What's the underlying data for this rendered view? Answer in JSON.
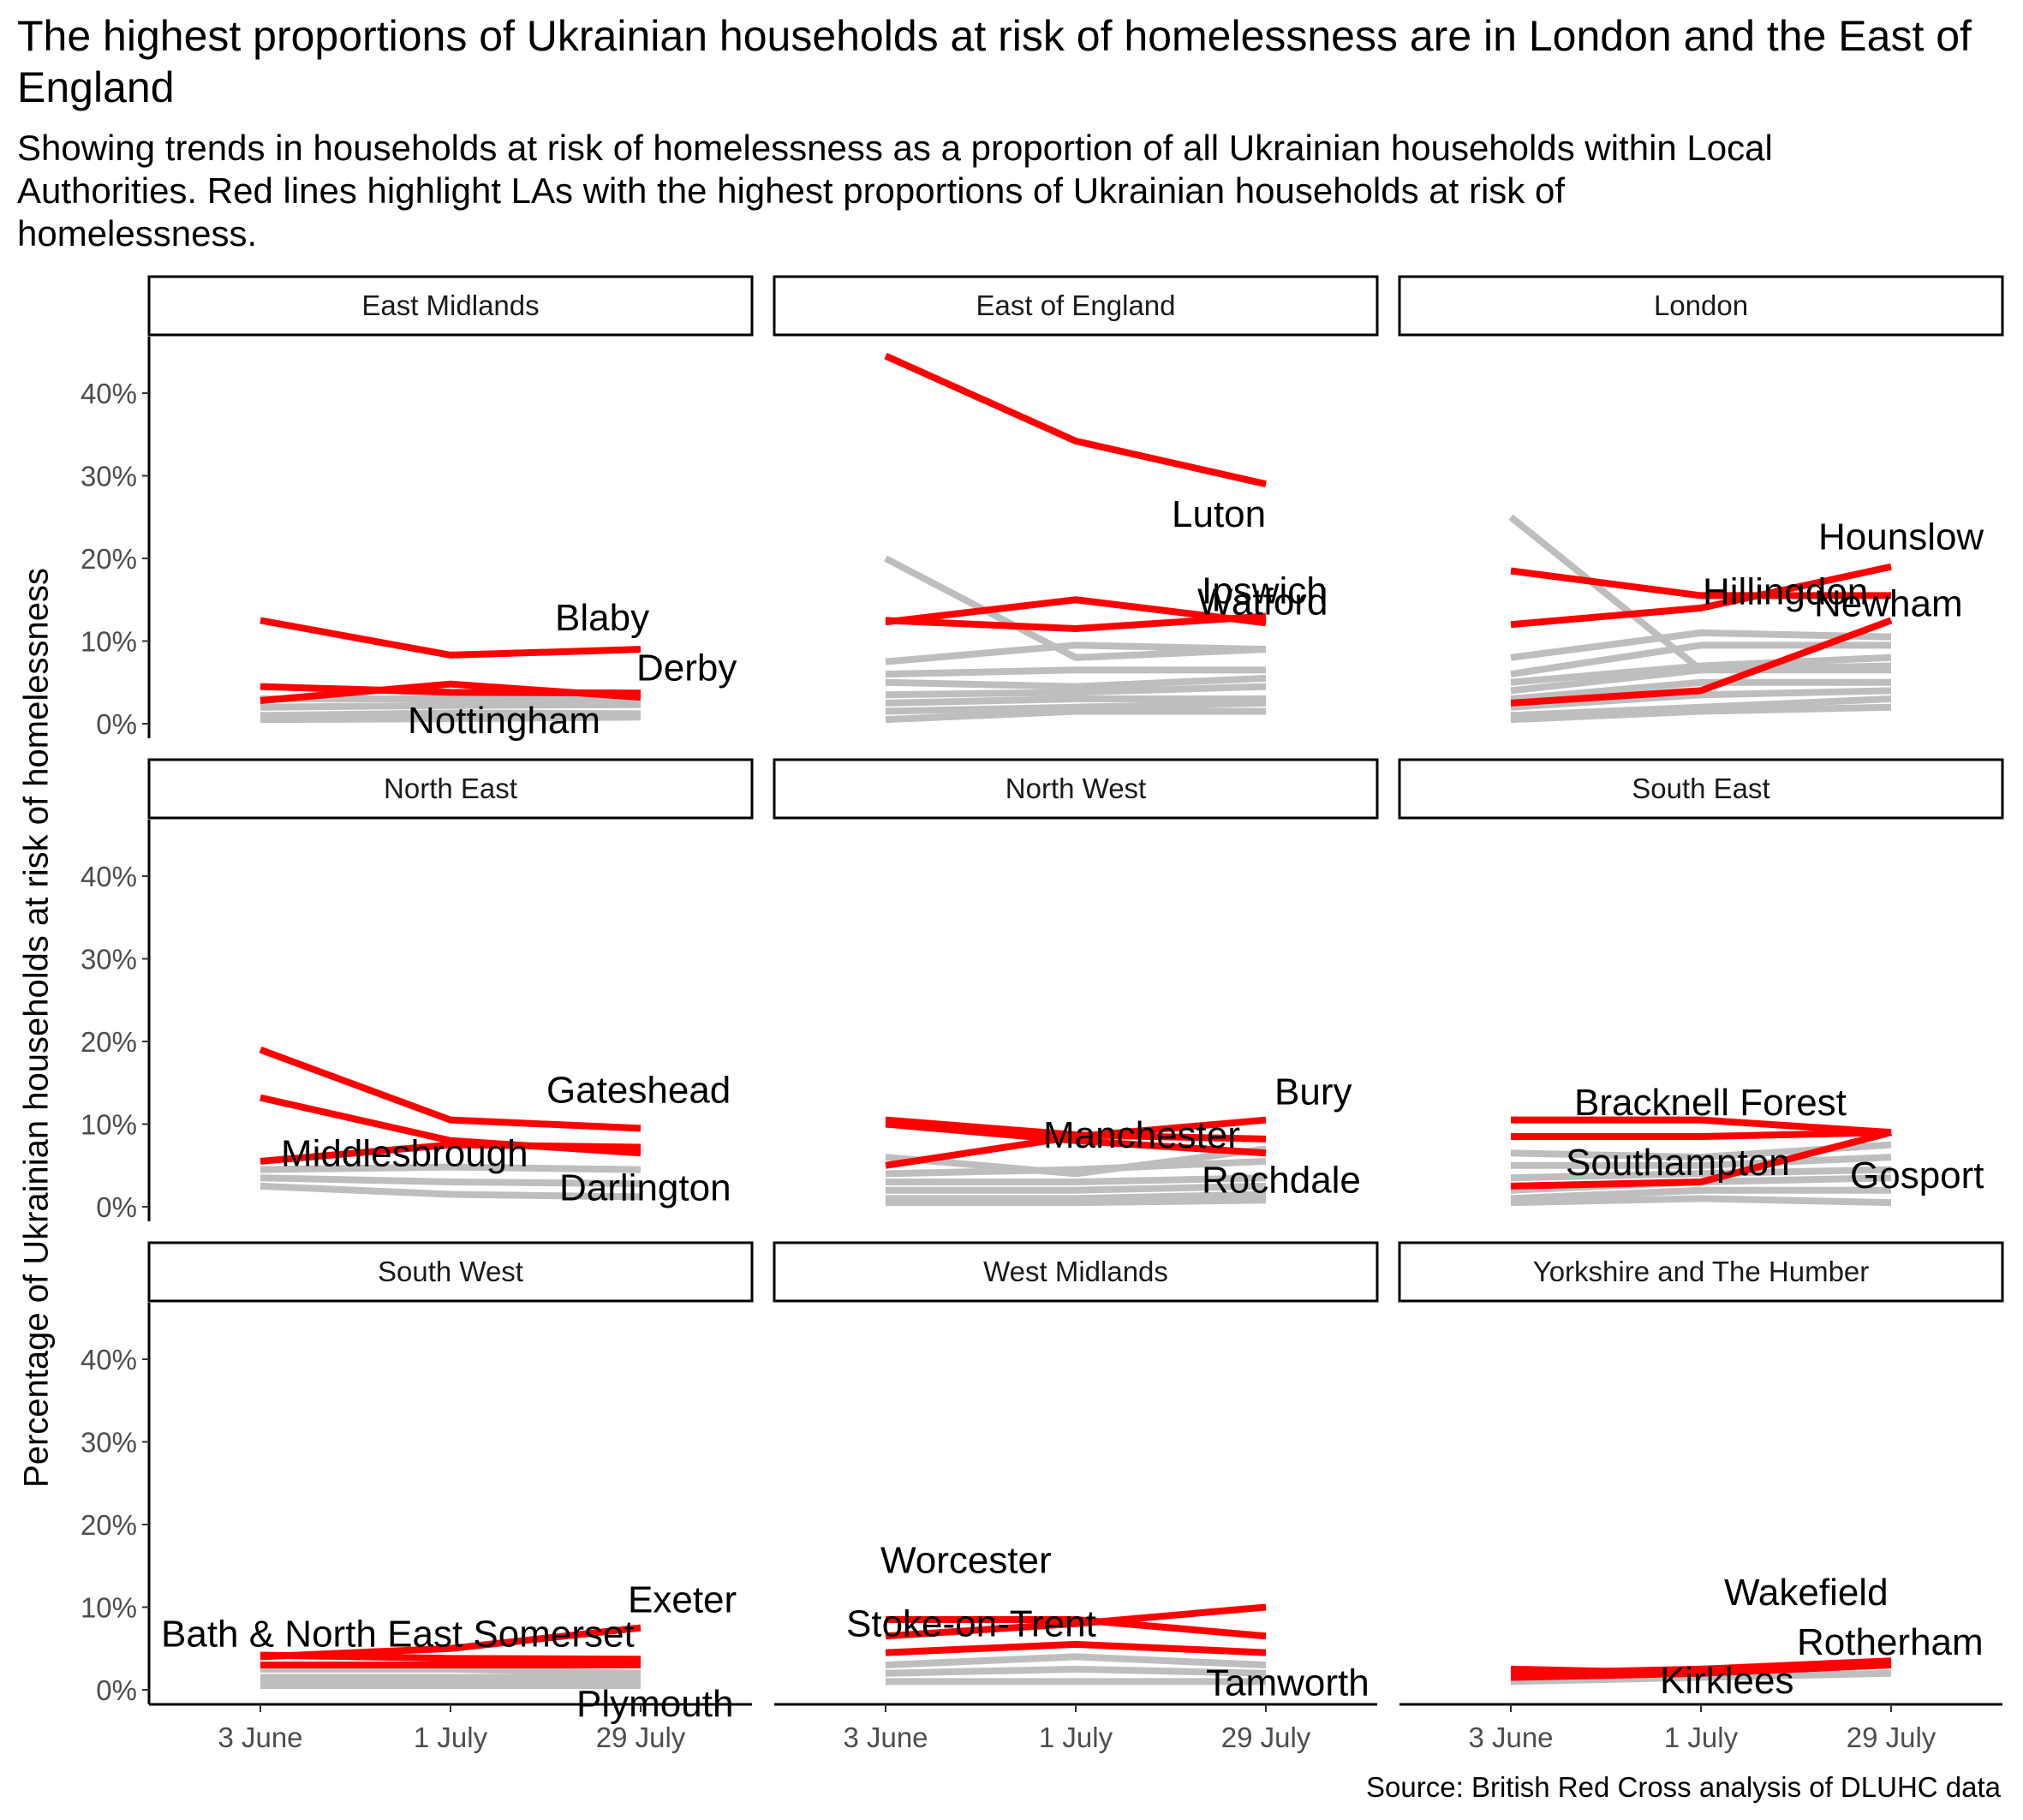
{
  "chart_data": {
    "type": "line",
    "title": "The highest proportions of Ukrainian households at risk of homelessness are in London and the East of England",
    "subtitle": "Showing trends in households at risk of homelessness as a proportion of all Ukrainian households within Local Authorities. Red lines highlight LAs with the highest proportions of Ukrainian households at risk of homelessness.",
    "ylabel": "Percentage of Ukrainian households at risk of homelessness",
    "xlabel": "",
    "caption": "Source: British Red Cross analysis of DLUHC data",
    "x": [
      "3 June",
      "1 July",
      "29 July"
    ],
    "y_ticks": [
      "0%",
      "10%",
      "20%",
      "30%",
      "40%"
    ],
    "ylim": [
      0,
      45
    ],
    "colors": {
      "highlight": "#ff0000",
      "other": "#bebebe"
    },
    "facets": [
      {
        "name": "East Midlands",
        "highlight": [
          {
            "name": "Blaby",
            "values": [
              12.5,
              8.3,
              9.0
            ]
          },
          {
            "name": "Derby",
            "values": [
              4.5,
              3.8,
              3.7
            ]
          },
          {
            "name": "Nottingham",
            "values": [
              2.8,
              4.8,
              3.2
            ]
          }
        ],
        "other": [
          [
            3.0,
            3.0,
            3.0
          ],
          [
            2.0,
            2.2,
            2.3
          ],
          [
            1.0,
            1.3,
            1.2
          ],
          [
            0.5,
            0.6,
            0.8
          ]
        ]
      },
      {
        "name": "East of England",
        "highlight": [
          {
            "name": "Luton",
            "values": [
              44.5,
              34.2,
              29.0
            ]
          },
          {
            "name": "Ipswich",
            "values": [
              12.5,
              11.5,
              13.0
            ]
          },
          {
            "name": "Watford",
            "values": [
              12.3,
              15.0,
              12.2
            ]
          }
        ],
        "other": [
          [
            20.0,
            8.0,
            9.0
          ],
          [
            7.5,
            9.5,
            9.0
          ],
          [
            6.0,
            6.5,
            6.5
          ],
          [
            5.0,
            4.5,
            5.5
          ],
          [
            3.5,
            3.8,
            4.5
          ],
          [
            2.5,
            3.0,
            3.0
          ],
          [
            1.5,
            2.0,
            2.5
          ],
          [
            0.5,
            1.5,
            1.5
          ]
        ]
      },
      {
        "name": "London",
        "highlight": [
          {
            "name": "Hounslow",
            "values": [
              12.0,
              14.0,
              19.0
            ]
          },
          {
            "name": "Hillingdon",
            "values": [
              18.5,
              15.5,
              15.5
            ]
          },
          {
            "name": "Newham",
            "values": [
              2.5,
              4.0,
              12.5
            ]
          }
        ],
        "other": [
          [
            25.0,
            6.5,
            7.0
          ],
          [
            8.0,
            11.0,
            10.5
          ],
          [
            6.0,
            9.5,
            9.5
          ],
          [
            5.0,
            7.0,
            8.0
          ],
          [
            4.0,
            6.5,
            6.5
          ],
          [
            3.0,
            5.0,
            5.0
          ],
          [
            2.0,
            3.5,
            4.0
          ],
          [
            1.0,
            2.0,
            3.0
          ],
          [
            0.5,
            1.5,
            2.0
          ]
        ]
      },
      {
        "name": "North East",
        "highlight": [
          {
            "name": "Gateshead",
            "values": [
              19.0,
              10.5,
              9.5
            ]
          },
          {
            "name": "Middlesbrough",
            "values": [
              13.2,
              8.0,
              6.5
            ]
          },
          {
            "name": "Darlington",
            "values": [
              5.5,
              7.5,
              7.2
            ]
          }
        ],
        "other": [
          [
            4.5,
            4.8,
            4.5
          ],
          [
            3.5,
            3.0,
            2.8
          ],
          [
            2.5,
            1.5,
            1.2
          ]
        ]
      },
      {
        "name": "North West",
        "highlight": [
          {
            "name": "Bury",
            "values": [
              5.0,
              8.5,
              10.5
            ]
          },
          {
            "name": "Manchester",
            "values": [
              10.5,
              8.7,
              8.2
            ]
          },
          {
            "name": "Rochdale",
            "values": [
              10.0,
              8.0,
              6.5
            ]
          }
        ],
        "other": [
          [
            6.0,
            4.0,
            7.0
          ],
          [
            4.0,
            4.5,
            5.5
          ],
          [
            3.0,
            3.0,
            3.5
          ],
          [
            2.0,
            2.0,
            2.5
          ],
          [
            1.0,
            1.0,
            1.5
          ],
          [
            0.5,
            0.5,
            0.8
          ]
        ]
      },
      {
        "name": "South East",
        "highlight": [
          {
            "name": "Bracknell Forest",
            "values": [
              10.5,
              10.5,
              9.0
            ]
          },
          {
            "name": "Southampton",
            "values": [
              8.5,
              8.5,
              9.0
            ]
          },
          {
            "name": "Gosport",
            "values": [
              2.5,
              3.0,
              9.0
            ]
          }
        ],
        "other": [
          [
            6.5,
            6.0,
            7.5
          ],
          [
            5.0,
            5.0,
            6.0
          ],
          [
            3.5,
            4.0,
            4.5
          ],
          [
            2.0,
            3.0,
            3.5
          ],
          [
            1.0,
            2.0,
            2.0
          ],
          [
            0.5,
            1.0,
            0.5
          ]
        ]
      },
      {
        "name": "South West",
        "highlight": [
          {
            "name": "Exeter",
            "values": [
              4.0,
              5.0,
              7.5
            ]
          },
          {
            "name": "Bath & North East Somerset",
            "values": [
              4.2,
              3.8,
              3.7
            ]
          },
          {
            "name": "Plymouth",
            "values": [
              3.0,
              3.0,
              3.0
            ]
          }
        ],
        "other": [
          [
            2.5,
            2.5,
            2.0
          ],
          [
            1.5,
            1.5,
            1.5
          ],
          [
            1.0,
            1.0,
            1.0
          ],
          [
            0.5,
            0.5,
            0.5
          ]
        ]
      },
      {
        "name": "West Midlands",
        "highlight": [
          {
            "name": "Worcester",
            "values": [
              6.5,
              8.0,
              10.0
            ]
          },
          {
            "name": "Stoke-on-Trent",
            "values": [
              8.5,
              8.5,
              6.5
            ]
          },
          {
            "name": "Tamworth",
            "values": [
              4.5,
              5.5,
              4.5
            ]
          }
        ],
        "other": [
          [
            3.0,
            4.0,
            3.0
          ],
          [
            2.0,
            2.5,
            2.0
          ],
          [
            1.0,
            1.0,
            1.0
          ]
        ]
      },
      {
        "name": "Yorkshire and The Humber",
        "highlight": [
          {
            "name": "Wakefield",
            "values": [
              2.0,
              2.5,
              3.5
            ]
          },
          {
            "name": "Rotherham",
            "values": [
              1.5,
              2.0,
              3.0
            ]
          },
          {
            "name": "Kirklees",
            "values": [
              2.5,
              2.0,
              3.2
            ]
          }
        ],
        "other": [
          [
            1.0,
            1.5,
            2.0
          ]
        ]
      }
    ]
  }
}
